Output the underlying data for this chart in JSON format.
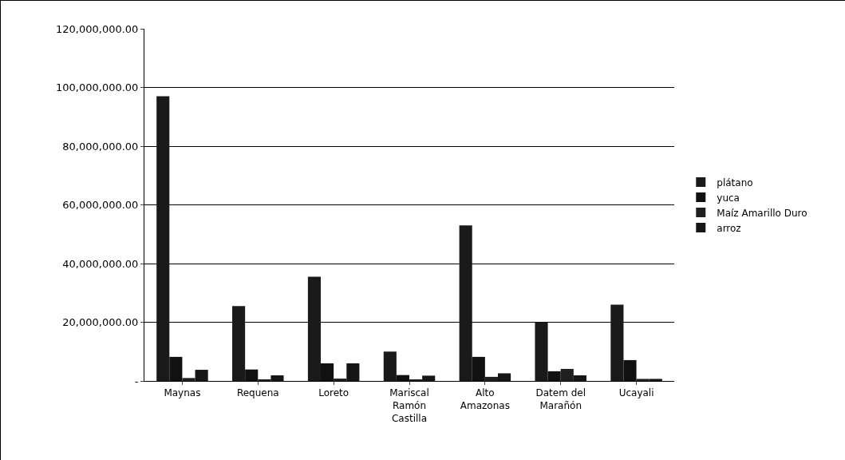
{
  "chart_data": {
    "type": "bar",
    "categories": [
      "Maynas",
      "Requena",
      "Loreto",
      "Mariscal Ramón Castilla",
      "Alto Amazonas",
      "Datem del Marañón",
      "Ucayali"
    ],
    "series": [
      {
        "name": "plátano",
        "color": "#1a1a1a",
        "values": [
          97000000,
          25500000,
          35500000,
          10000000,
          53000000,
          20000000,
          26000000
        ]
      },
      {
        "name": "yuca",
        "color": "#111111",
        "values": [
          8200000,
          3900000,
          6000000,
          2000000,
          8200000,
          3300000,
          7100000
        ]
      },
      {
        "name": "Maíz Amarillo Duro",
        "color": "#202020",
        "values": [
          1000000,
          300000,
          800000,
          300000,
          1400000,
          4100000,
          700000
        ]
      },
      {
        "name": "arroz",
        "color": "#161616",
        "values": [
          3800000,
          1900000,
          6000000,
          1800000,
          2600000,
          1900000,
          700000
        ]
      }
    ],
    "ylim": [
      0,
      120000000
    ],
    "yticks": [
      {
        "value": 0,
        "label": "-"
      },
      {
        "value": 20000000,
        "label": "20,000,000.00"
      },
      {
        "value": 40000000,
        "label": "40,000,000.00"
      },
      {
        "value": 60000000,
        "label": "60,000,000.00"
      },
      {
        "value": 80000000,
        "label": "80,000,000.00"
      },
      {
        "value": 100000000,
        "label": "100,000,000.00"
      },
      {
        "value": 120000000,
        "label": "120,000,000.00"
      }
    ],
    "grid": "y",
    "legend": "right"
  }
}
